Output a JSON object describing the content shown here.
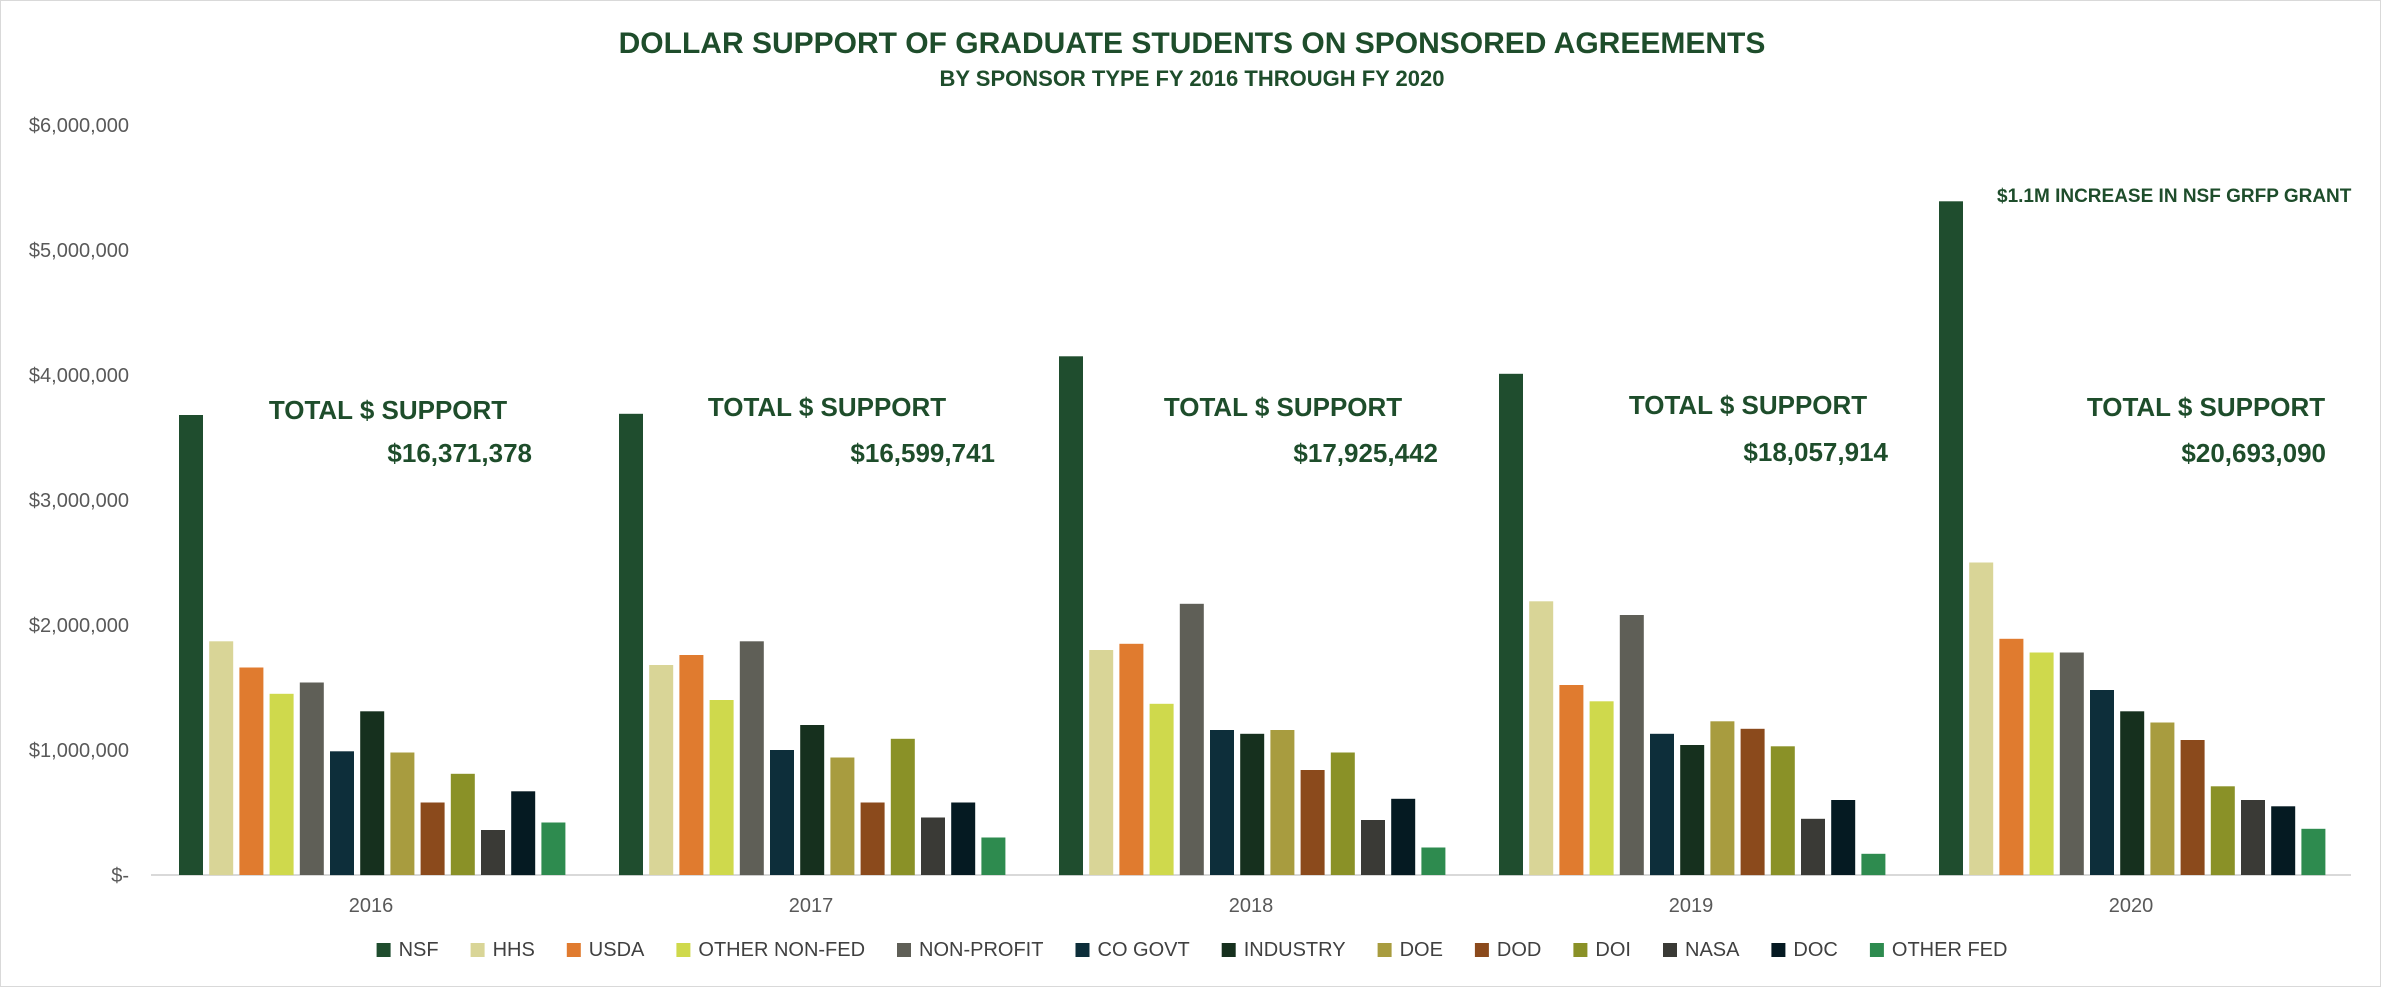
{
  "chart_data": {
    "type": "bar",
    "title": "DOLLAR SUPPORT OF GRADUATE STUDENTS ON SPONSORED AGREEMENTS",
    "subtitle": "BY SPONSOR TYPE FY 2016 THROUGH FY 2020",
    "xlabel": "",
    "ylabel": "",
    "ylim": [
      0,
      6000000
    ],
    "y_ticks": [
      0,
      1000000,
      2000000,
      3000000,
      4000000,
      5000000,
      6000000
    ],
    "y_tick_labels": [
      "$-",
      "$1,000,000",
      "$2,000,000",
      "$3,000,000",
      "$4,000,000",
      "$5,000,000",
      "$6,000,000"
    ],
    "grid": false,
    "legend_position": "bottom",
    "categories": [
      "2016",
      "2017",
      "2018",
      "2019",
      "2020"
    ],
    "series": [
      {
        "name": "NSF",
        "color": "#1f4d2e",
        "values": [
          3680000,
          3690000,
          4150000,
          4010000,
          5390000
        ]
      },
      {
        "name": "HHS",
        "color": "#d9d597",
        "values": [
          1870000,
          1680000,
          1800000,
          2190000,
          2500000
        ]
      },
      {
        "name": "USDA",
        "color": "#e07b2f",
        "values": [
          1660000,
          1760000,
          1850000,
          1520000,
          1890000
        ]
      },
      {
        "name": "OTHER NON-FED",
        "color": "#cfd94c",
        "values": [
          1450000,
          1400000,
          1370000,
          1390000,
          1780000
        ]
      },
      {
        "name": "NON-PROFIT",
        "color": "#5f5f57",
        "values": [
          1540000,
          1870000,
          2170000,
          2080000,
          1780000
        ]
      },
      {
        "name": "CO GOVT",
        "color": "#0d2e3a",
        "values": [
          990000,
          1000000,
          1160000,
          1130000,
          1480000
        ]
      },
      {
        "name": "INDUSTRY",
        "color": "#16301e",
        "values": [
          1310000,
          1200000,
          1130000,
          1040000,
          1310000
        ]
      },
      {
        "name": "DOE",
        "color": "#a89c3f",
        "values": [
          980000,
          940000,
          1160000,
          1230000,
          1220000
        ]
      },
      {
        "name": "DOD",
        "color": "#8b4a1c",
        "values": [
          580000,
          580000,
          840000,
          1170000,
          1080000
        ]
      },
      {
        "name": "DOI",
        "color": "#8a9127",
        "values": [
          810000,
          1090000,
          980000,
          1030000,
          710000
        ]
      },
      {
        "name": "NASA",
        "color": "#3a3a36",
        "values": [
          360000,
          460000,
          440000,
          450000,
          600000
        ]
      },
      {
        "name": "DOC",
        "color": "#051a22",
        "values": [
          670000,
          580000,
          610000,
          600000,
          550000
        ]
      },
      {
        "name": "OTHER FED",
        "color": "#2e8b4f",
        "values": [
          420000,
          300000,
          220000,
          170000,
          370000
        ]
      }
    ],
    "annotations": [
      {
        "group": "2016",
        "label": "TOTAL $ SUPPORT",
        "value": "$16,371,378"
      },
      {
        "group": "2017",
        "label": "TOTAL $ SUPPORT",
        "value": "$16,599,741"
      },
      {
        "group": "2018",
        "label": "TOTAL $ SUPPORT",
        "value": "$17,925,442"
      },
      {
        "group": "2019",
        "label": "TOTAL $ SUPPORT",
        "value": "$18,057,914"
      },
      {
        "group": "2020",
        "label": "TOTAL $ SUPPORT",
        "value": "$20,693,090"
      }
    ],
    "callout": "$1.1M INCREASE IN NSF GRFP GRANT"
  }
}
